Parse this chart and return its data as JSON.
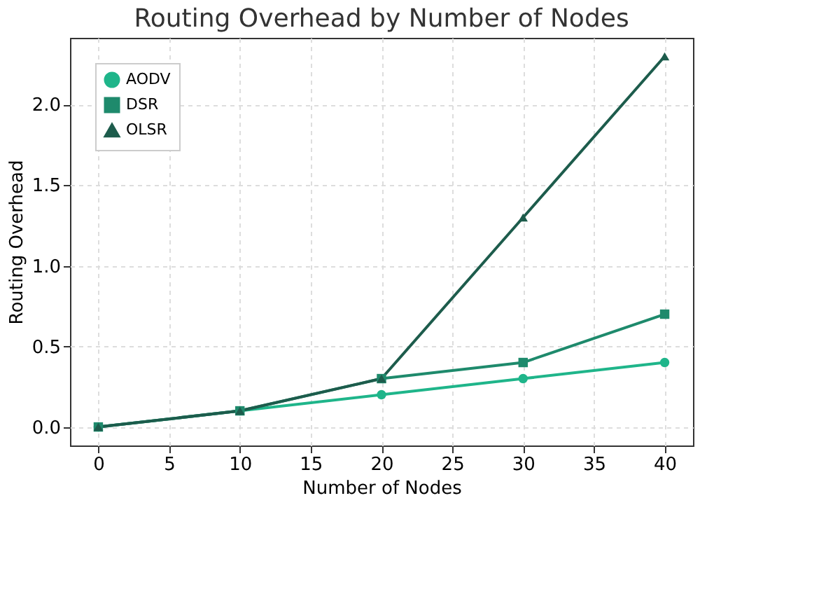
{
  "chart_data": {
    "type": "line",
    "title": "Routing Overhead by Number of Nodes",
    "xlabel": "Number of Nodes",
    "ylabel": "Routing Overhead",
    "x": [
      0,
      10,
      20,
      30,
      40
    ],
    "series": [
      {
        "name": "AODV",
        "color": "#1fb58a",
        "marker": "circle",
        "values": [
          0.0,
          0.1,
          0.2,
          0.3,
          0.4
        ]
      },
      {
        "name": "DSR",
        "color": "#1e8a6c",
        "marker": "square",
        "values": [
          0.0,
          0.1,
          0.3,
          0.4,
          0.7
        ]
      },
      {
        "name": "OLSR",
        "color": "#1d5c4c",
        "marker": "triangle",
        "values": [
          0.0,
          0.1,
          0.3,
          1.3,
          2.3
        ]
      }
    ],
    "xlim": [
      -2,
      42
    ],
    "xticks": [
      0,
      5,
      10,
      15,
      20,
      25,
      30,
      35,
      40
    ],
    "ylim": [
      -0.115,
      2.415
    ],
    "yticks": [
      {
        "value": 0,
        "label": "0.0"
      },
      0.5,
      {
        "value": 1,
        "label": "1.0"
      },
      1.5,
      {
        "value": 2,
        "label": "2.0"
      }
    ],
    "grid": true,
    "legend": "top left",
    "line_style": "solid"
  }
}
